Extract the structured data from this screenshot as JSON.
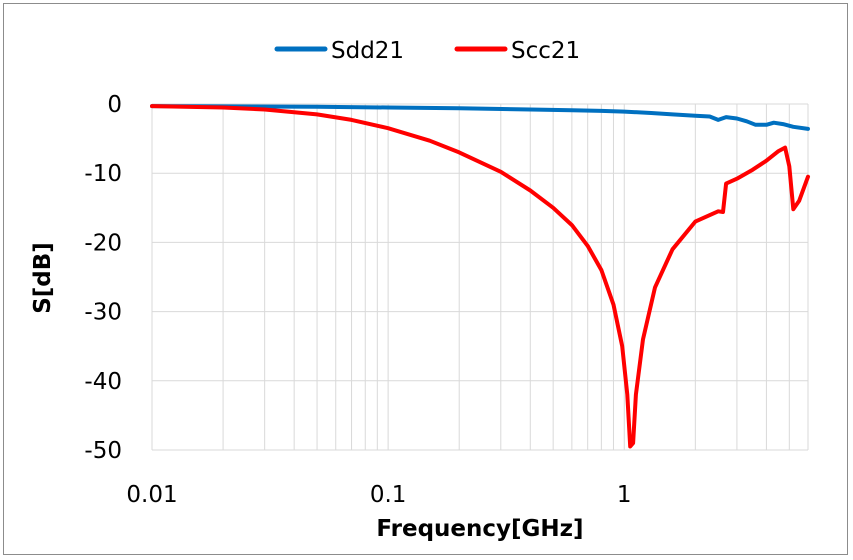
{
  "chart_data": {
    "type": "line",
    "xlabel": "Frequency[GHz]",
    "ylabel": "S[dB]",
    "x_scale": "log",
    "xlim": [
      0.01,
      6
    ],
    "ylim": [
      -50,
      0
    ],
    "x_ticks": [
      0.01,
      0.1,
      1
    ],
    "x_tick_labels": [
      "0.01",
      "0.1",
      "1"
    ],
    "y_ticks": [
      0,
      -10,
      -20,
      -30,
      -40,
      -50
    ],
    "y_tick_labels": [
      "0",
      "-10",
      "-20",
      "-30",
      "-40",
      "-50"
    ],
    "grid": "on (log minor vertical gridlines)",
    "legend_position": "top-center",
    "series": [
      {
        "name": "Sdd21",
        "color": "#0070c0",
        "points": [
          [
            0.01,
            -0.3
          ],
          [
            0.02,
            -0.35
          ],
          [
            0.05,
            -0.4
          ],
          [
            0.1,
            -0.5
          ],
          [
            0.2,
            -0.6
          ],
          [
            0.4,
            -0.8
          ],
          [
            0.6,
            -0.9
          ],
          [
            0.8,
            -1.0
          ],
          [
            1.0,
            -1.1
          ],
          [
            1.3,
            -1.3
          ],
          [
            1.6,
            -1.5
          ],
          [
            2.0,
            -1.7
          ],
          [
            2.3,
            -1.8
          ],
          [
            2.5,
            -2.3
          ],
          [
            2.7,
            -1.9
          ],
          [
            3.0,
            -2.1
          ],
          [
            3.3,
            -2.5
          ],
          [
            3.6,
            -3.0
          ],
          [
            4.0,
            -3.0
          ],
          [
            4.3,
            -2.7
          ],
          [
            4.7,
            -2.9
          ],
          [
            5.2,
            -3.3
          ],
          [
            6.0,
            -3.6
          ]
        ]
      },
      {
        "name": "Scc21",
        "color": "#ff0000",
        "points": [
          [
            0.01,
            -0.3
          ],
          [
            0.02,
            -0.5
          ],
          [
            0.03,
            -0.8
          ],
          [
            0.05,
            -1.5
          ],
          [
            0.07,
            -2.3
          ],
          [
            0.1,
            -3.5
          ],
          [
            0.15,
            -5.3
          ],
          [
            0.2,
            -7.0
          ],
          [
            0.3,
            -9.8
          ],
          [
            0.4,
            -12.5
          ],
          [
            0.5,
            -15.0
          ],
          [
            0.6,
            -17.5
          ],
          [
            0.7,
            -20.5
          ],
          [
            0.8,
            -24.0
          ],
          [
            0.9,
            -29.0
          ],
          [
            0.98,
            -35.0
          ],
          [
            1.03,
            -42.0
          ],
          [
            1.06,
            -49.5
          ],
          [
            1.09,
            -49.0
          ],
          [
            1.12,
            -42.0
          ],
          [
            1.2,
            -34.0
          ],
          [
            1.35,
            -26.5
          ],
          [
            1.6,
            -21.0
          ],
          [
            2.0,
            -17.0
          ],
          [
            2.5,
            -15.5
          ],
          [
            2.62,
            -15.6
          ],
          [
            2.7,
            -11.5
          ],
          [
            3.0,
            -10.8
          ],
          [
            3.5,
            -9.5
          ],
          [
            4.0,
            -8.2
          ],
          [
            4.5,
            -6.8
          ],
          [
            4.8,
            -6.3
          ],
          [
            5.0,
            -9.0
          ],
          [
            5.2,
            -15.2
          ],
          [
            5.5,
            -14.0
          ],
          [
            6.0,
            -10.5
          ]
        ]
      }
    ]
  }
}
